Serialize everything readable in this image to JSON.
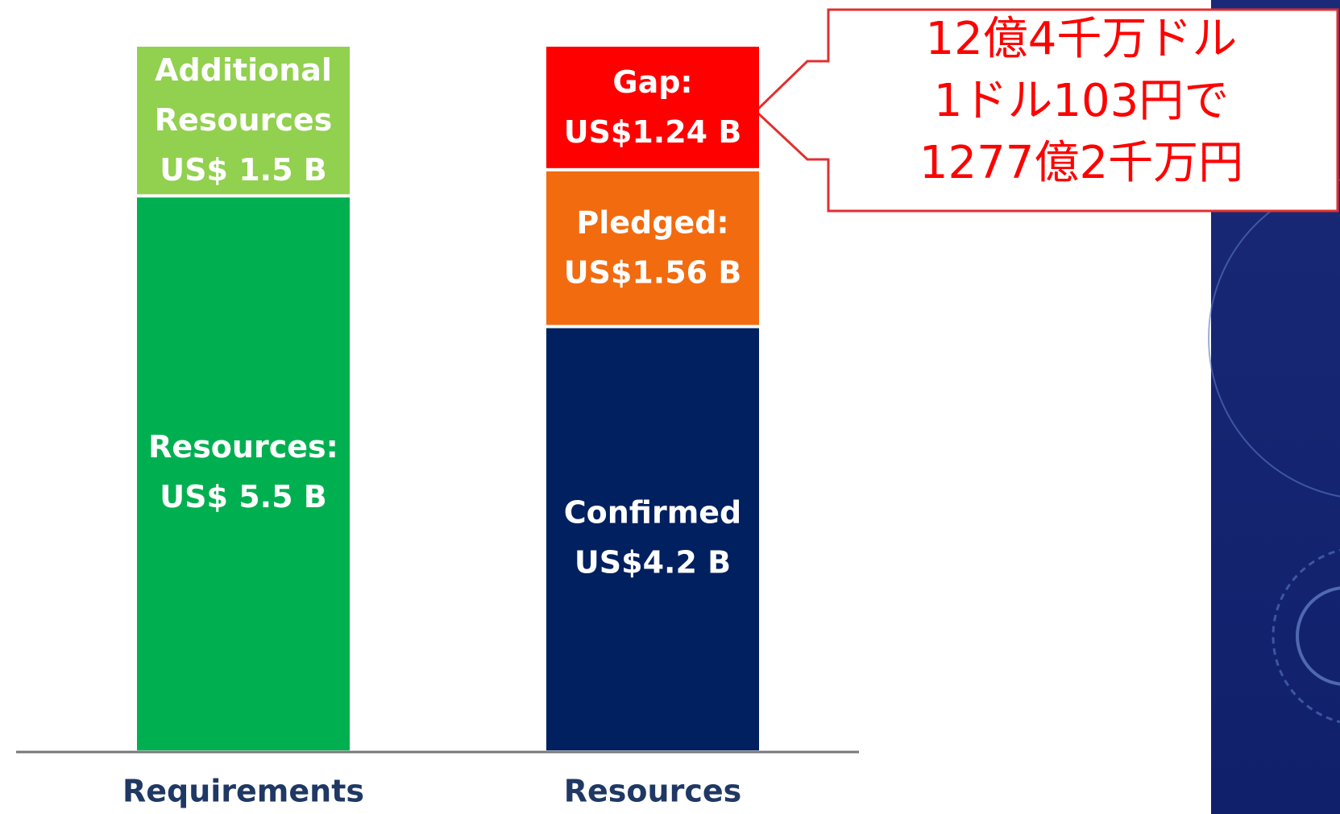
{
  "chart_data": {
    "type": "stacked-bar",
    "categories": [
      "Requirements",
      "Resources"
    ],
    "series": [
      {
        "colors": [
          "#00b050",
          "#002060"
        ],
        "values": [
          5.5,
          4.2
        ],
        "segment_labels": [
          [
            "Resources:"
          ],
          [
            "Confirmed"
          ]
        ],
        "value_labels": [
          "US$ 5.5 B",
          "US$4.2 B"
        ]
      },
      {
        "colors": [
          "#92d050",
          "#f26b0f"
        ],
        "values": [
          1.5,
          1.56
        ],
        "segment_labels": [
          [
            "Additional",
            "Resources"
          ],
          [
            "Pledged:"
          ]
        ],
        "value_labels": [
          "US$ 1.5 B",
          "US$1.56 B"
        ]
      },
      {
        "colors": [
          null,
          "#ff0000"
        ],
        "values": [
          null,
          1.24
        ],
        "segment_labels": [
          null,
          [
            "Gap:"
          ]
        ],
        "value_labels": [
          null,
          "US$1.24 B"
        ]
      }
    ],
    "annotation": [
      "12億4千万ドル",
      "1ドル103円で",
      "1277億2千万円"
    ]
  }
}
